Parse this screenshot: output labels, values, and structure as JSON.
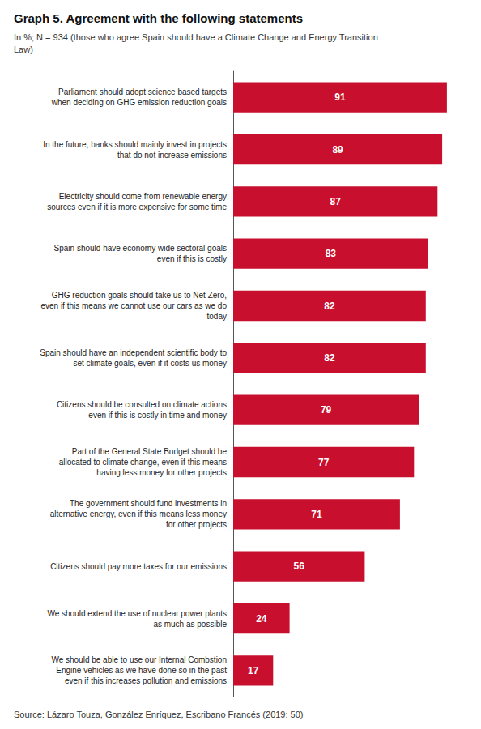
{
  "chart_data": {
    "type": "bar",
    "orientation": "horizontal",
    "title": "Graph 5. Agreement with the following statements",
    "subtitle": "In %; N = 934 (those who agree Spain should have a Climate Change and Energy Transition\nLaw)",
    "source": "Source: Lázaro Touza, González Enríquez, Escribano Francés (2019: 50)",
    "categories": [
      "Parliament should adopt science based targets\nwhen deciding on GHG emission reduction goals",
      "In the future, banks should mainly invest in projects\nthat do not increase emissions",
      "Electricity should come from renewable energy\nsources even if it is more expensive for some time",
      "Spain should have economy wide sectoral goals\neven if this is costly",
      "GHG reduction goals should take us to Net Zero,\neven if this means we cannot use our cars as we do\ntoday",
      "Spain should have an independent scientific body to\nset climate goals, even if it costs us money",
      "Citizens should be consulted on climate actions\neven if this is costly in time and money",
      "Part of the General State Budget should be\nallocated to climate change, even if this means\nhaving less money for other projects",
      "The government should fund investments in\nalternative energy, even if this means less money\nfor other projects",
      "Citizens should pay more taxes for our emissions",
      "We should extend the use of nuclear power plants\nas much as possible",
      "We should be able to use our Internal Combstion\nEngine vehicles as we have done so in the past\neven if this increases pollution and emissions"
    ],
    "values": [
      91,
      89,
      87,
      83,
      82,
      82,
      79,
      77,
      71,
      56,
      24,
      17
    ],
    "color": "#C8102E",
    "xlim": [
      0,
      100
    ],
    "grid": false,
    "data_labels": true,
    "tick_labels": "y"
  }
}
